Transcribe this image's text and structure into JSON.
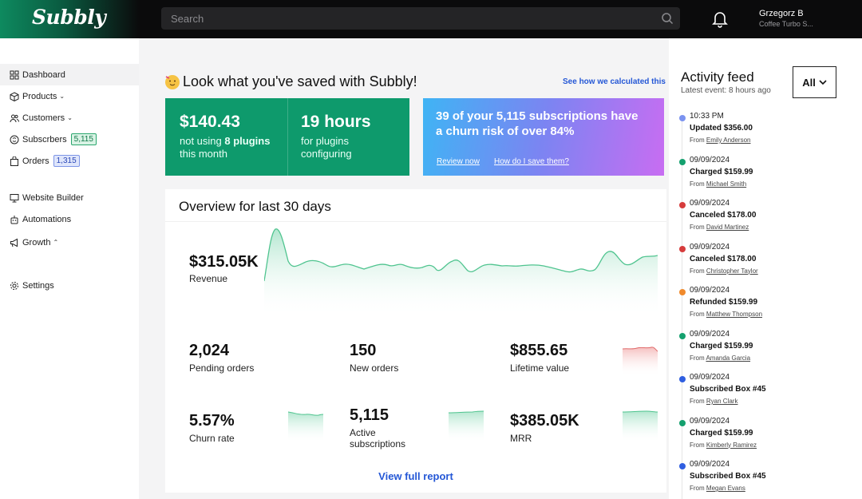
{
  "topbar": {
    "logo": "Subbly",
    "search_placeholder": "Search",
    "user_name": "Grzegorz B",
    "user_company": "Coffee Turbo S..."
  },
  "sidebar": {
    "items": [
      {
        "label": "Dashboard",
        "icon": "grid-icon"
      },
      {
        "label": "Products",
        "icon": "box-icon",
        "chevron": "⌄"
      },
      {
        "label": "Customers",
        "icon": "users-icon",
        "chevron": "⌄"
      },
      {
        "label": "Subscrbers",
        "icon": "subscription-icon",
        "badge": "5,115"
      },
      {
        "label": "Orders",
        "icon": "bag-icon",
        "badge": "1,315"
      },
      {
        "label": "Website Builder",
        "icon": "monitor-icon"
      },
      {
        "label": "Automations",
        "icon": "robot-icon"
      },
      {
        "label": "Growth",
        "icon": "megaphone-icon",
        "chevron": "⌃"
      },
      {
        "label": "Settings",
        "icon": "gear-icon"
      }
    ]
  },
  "savings": {
    "title": "Look what you've saved with Subbly!",
    "link": "See how we calculated this",
    "money": "$140.43",
    "money_sub_pre": "not using ",
    "money_sub_bold": "8 plugins",
    "money_sub_post": "this month",
    "hours": "19 hours",
    "hours_sub1": "for plugins",
    "hours_sub2": "configuring"
  },
  "churn": {
    "text": "39 of your 5,115 subscriptions have a churn risk of over 84%",
    "review": "Review now",
    "how": "How do I save them?"
  },
  "overview": {
    "title": "Overview for last 30 days",
    "revenue": "$315.05K",
    "revenue_label": "Revenue",
    "metrics": [
      {
        "value": "2,024",
        "label": "Pending orders"
      },
      {
        "value": "150",
        "label": "New orders"
      },
      {
        "value": "$855.65",
        "label": "Lifetime value"
      },
      {
        "value": "5.57%",
        "label": "Churn rate"
      },
      {
        "value": "5,115",
        "label": "Active subscriptions"
      },
      {
        "value": "$385.05K",
        "label": "MRR"
      }
    ],
    "view_report": "View full report"
  },
  "feed": {
    "title": "Activity feed",
    "subtitle": "Latest event: 8 hours ago",
    "filter": "All",
    "from_label": "From",
    "events": [
      {
        "time": "10:33 PM",
        "title": "Updated $356.00",
        "name": "Emily Anderson",
        "color": "#7b93f0"
      },
      {
        "time": "09/09/2024",
        "title": "Charged $159.99",
        "name": "Michael Smith",
        "color": "#14a06e"
      },
      {
        "time": "09/09/2024",
        "title": "Canceled $178.00",
        "name": "David Martinez",
        "color": "#d63c3c"
      },
      {
        "time": "09/09/2024",
        "title": "Canceled $178.00",
        "name": "Christopher Taylor",
        "color": "#d63c3c"
      },
      {
        "time": "09/09/2024",
        "title": "Refunded $159.99",
        "name": "Matthew Thompson",
        "color": "#f08a2c"
      },
      {
        "time": "09/09/2024",
        "title": "Charged $159.99",
        "name": "Amanda Garcia",
        "color": "#14a06e"
      },
      {
        "time": "09/09/2024",
        "title": "Subscribed Box #45",
        "name": "Ryan Clark",
        "color": "#2f5ee0"
      },
      {
        "time": "09/09/2024",
        "title": "Charged $159.99",
        "name": "Kimberly Ramirez",
        "color": "#14a06e"
      },
      {
        "time": "09/09/2024",
        "title": "Subscribed Box #45",
        "name": "Megan Evans",
        "color": "#2f5ee0"
      }
    ]
  },
  "colors": {
    "brand_green": "#0e9a6c",
    "link_blue": "#2457d6"
  }
}
